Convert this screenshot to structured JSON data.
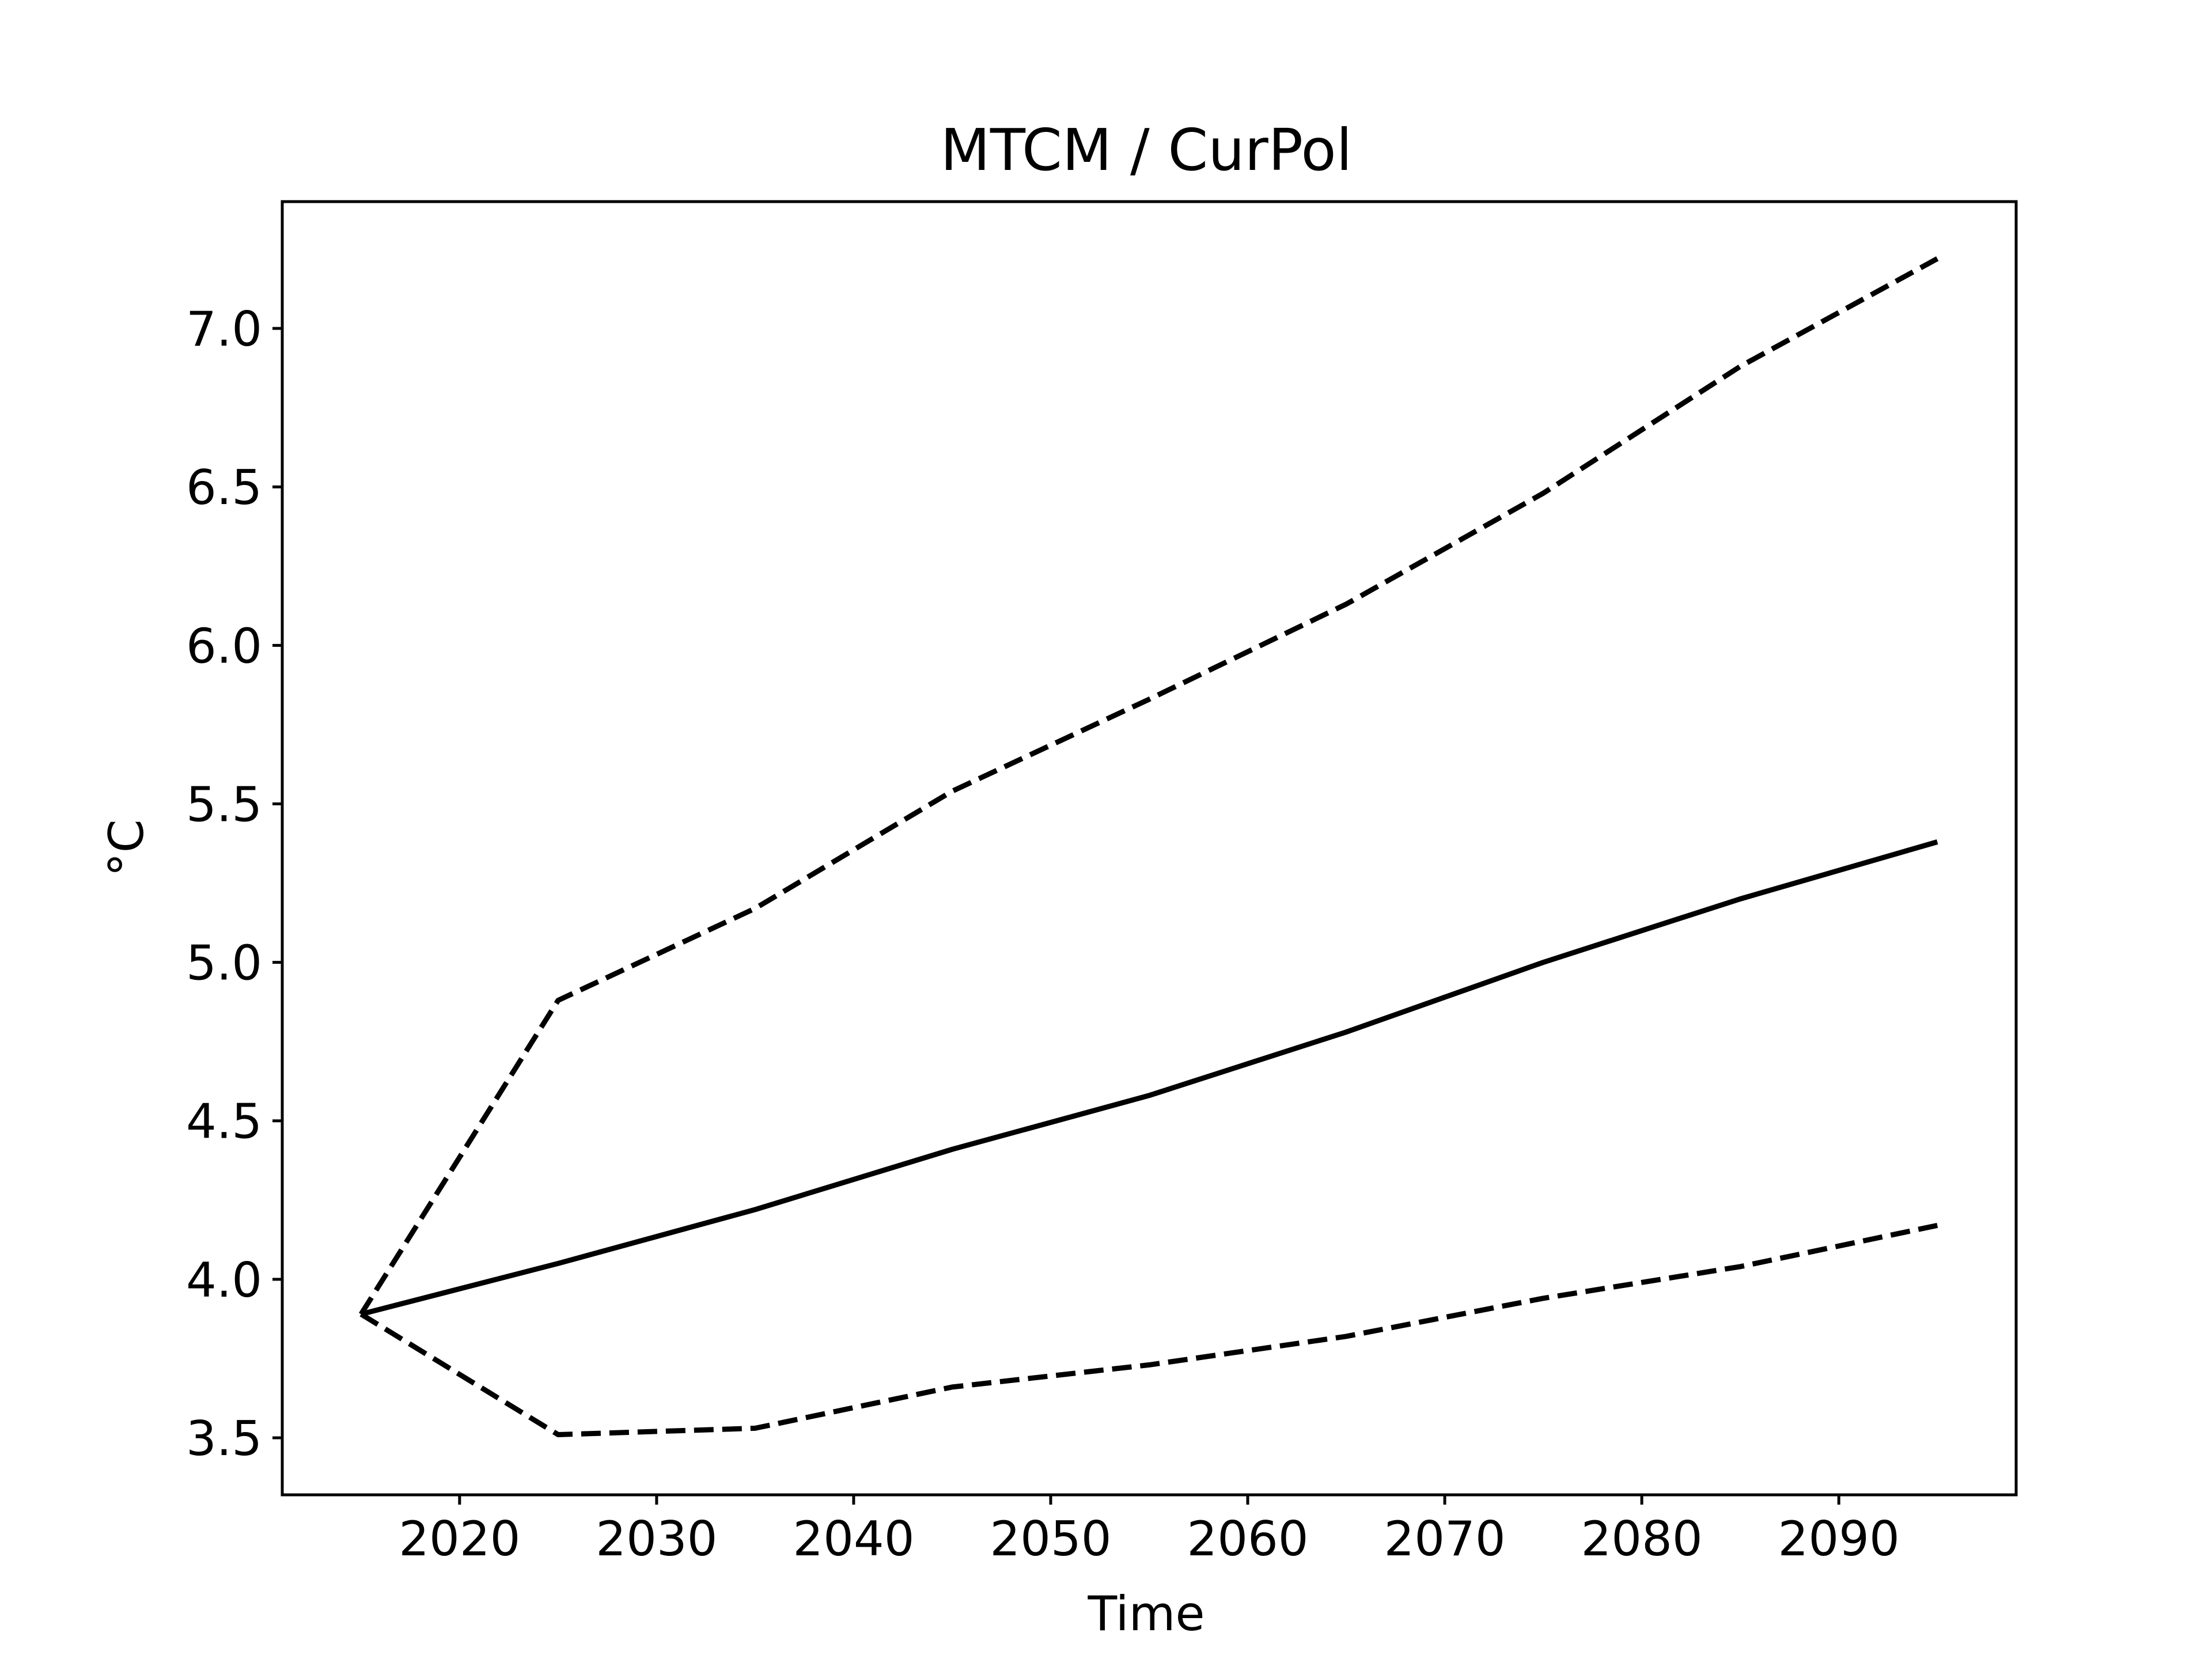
{
  "chart_data": {
    "type": "line",
    "title": "MTCM / CurPol",
    "xlabel": "Time",
    "ylabel": "°C",
    "xlim": [
      2011,
      2099
    ],
    "ylim": [
      3.32,
      7.4
    ],
    "x_ticks": [
      2020,
      2030,
      2040,
      2050,
      2060,
      2070,
      2080,
      2090
    ],
    "y_ticks": [
      3.5,
      4.0,
      4.5,
      5.0,
      5.5,
      6.0,
      6.5,
      7.0
    ],
    "x_tick_labels": [
      "2020",
      "2030",
      "2040",
      "2050",
      "2060",
      "2070",
      "2080",
      "2090"
    ],
    "y_tick_labels": [
      "3.5",
      "4.0",
      "4.5",
      "5.0",
      "5.5",
      "6.0",
      "6.5",
      "7.0"
    ],
    "grid": false,
    "x": [
      2015,
      2025,
      2035,
      2045,
      2055,
      2065,
      2075,
      2085,
      2095
    ],
    "series": [
      {
        "values": [
          3.89,
          4.05,
          4.22,
          4.41,
          4.58,
          4.78,
          5.0,
          5.2,
          5.38
        ],
        "style": "solid",
        "color": "#000000"
      },
      {
        "values": [
          3.89,
          4.88,
          5.17,
          5.54,
          5.83,
          6.13,
          6.48,
          6.88,
          7.22
        ],
        "style": "dashed",
        "color": "#000000"
      },
      {
        "values": [
          3.89,
          3.51,
          3.53,
          3.66,
          3.73,
          3.82,
          3.94,
          4.04,
          4.17
        ],
        "style": "dashed",
        "color": "#000000"
      }
    ]
  }
}
